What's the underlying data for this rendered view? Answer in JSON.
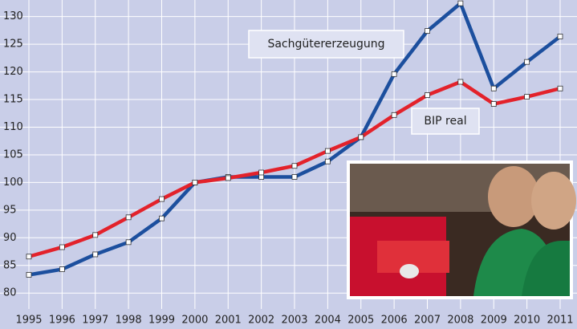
{
  "chart_data": {
    "type": "line",
    "categories": [
      "1995",
      "1996",
      "1997",
      "1998",
      "1999",
      "2000",
      "2001",
      "2002",
      "2003",
      "2004",
      "2005",
      "2006",
      "2007",
      "2008",
      "2009",
      "2010",
      "2011"
    ],
    "series": [
      {
        "name": "Sachgütererzeugung",
        "color": "#1c4f9e",
        "values": [
          83.3,
          84.3,
          87,
          89.2,
          93.5,
          100,
          101,
          101,
          101,
          103.8,
          108.2,
          119.6,
          127.4,
          132.4,
          117,
          121.8,
          126.4
        ]
      },
      {
        "name": "BIP real",
        "color": "#e3222b",
        "values": [
          86.6,
          88.3,
          90.5,
          93.7,
          97,
          100,
          100.8,
          101.8,
          103,
          105.7,
          108.2,
          112.2,
          115.8,
          118.2,
          114.2,
          115.5,
          117
        ]
      }
    ],
    "ylim": [
      78,
      133
    ],
    "yticks": [
      80,
      85,
      90,
      95,
      100,
      105,
      110,
      115,
      120,
      125,
      130
    ],
    "grid": true
  }
}
